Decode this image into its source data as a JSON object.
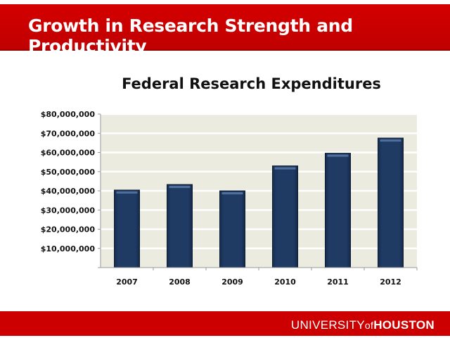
{
  "slide": {
    "title": "Growth in Research Strength and Productivity",
    "footer_logo": {
      "part1": "UNIVERSITY",
      "part2": "of",
      "part3": "HOUSTON"
    }
  },
  "colors": {
    "brand_red": "#cc0000",
    "bar": "#1f3a63",
    "plot_bg": "#ecebe0"
  },
  "chart_data": {
    "type": "bar",
    "title": "Federal Research Expenditures",
    "xlabel": "",
    "ylabel": "",
    "categories": [
      "2007",
      "2008",
      "2009",
      "2010",
      "2011",
      "2012"
    ],
    "values": [
      40400000,
      43300000,
      40000000,
      53000000,
      59600000,
      67500000
    ],
    "ylim": [
      0,
      80000000
    ],
    "yticks": [
      10000000,
      20000000,
      30000000,
      40000000,
      50000000,
      60000000,
      70000000,
      80000000
    ],
    "ytick_labels": [
      "$10,000,000",
      "$20,000,000",
      "$30,000,000",
      "$40,000,000",
      "$50,000,000",
      "$60,000,000",
      "$70,000,000",
      "$80,000,000"
    ],
    "grid": true,
    "legend": "none"
  }
}
